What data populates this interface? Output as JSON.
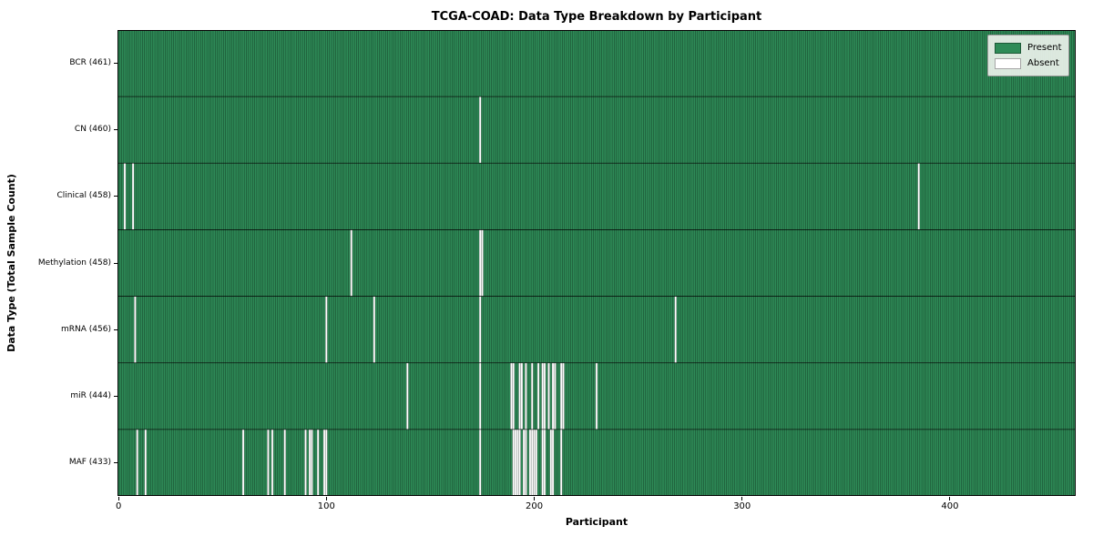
{
  "chart_data": {
    "type": "heatmap",
    "title": "TCGA-COAD: Data Type Breakdown by Participant",
    "xlabel": "Participant",
    "ylabel": "Data Type (Total Sample Count)",
    "n_participants": 461,
    "x_ticks": [
      0,
      100,
      200,
      300,
      400
    ],
    "grid": false,
    "legend_position": "upper right",
    "legend": [
      {
        "label": "Present",
        "color": "#2e8b57"
      },
      {
        "label": "Absent",
        "color": "#ffffff"
      }
    ],
    "colors": {
      "present": "#2e8b57",
      "absent": "#ffffff",
      "cell_edge": "rgba(0,0,0,0.5)",
      "row_separator": "rgba(0,0,0,0.85)",
      "axes_border": "#000000"
    },
    "rows": [
      {
        "name": "BCR",
        "label": "BCR (461)",
        "total": 461,
        "absent_participants": []
      },
      {
        "name": "CN",
        "label": "CN (460)",
        "total": 460,
        "absent_participants": [
          174
        ]
      },
      {
        "name": "Clinical",
        "label": "Clinical (458)",
        "total": 458,
        "absent_participants": [
          3,
          7,
          385
        ]
      },
      {
        "name": "Methylation",
        "label": "Methylation (458)",
        "total": 458,
        "absent_participants": [
          112,
          174,
          175
        ]
      },
      {
        "name": "mRNA",
        "label": "mRNA (456)",
        "total": 456,
        "absent_participants": [
          8,
          100,
          123,
          174,
          268
        ]
      },
      {
        "name": "miR",
        "label": "miR (444)",
        "total": 444,
        "absent_participants": [
          139,
          174,
          189,
          190,
          193,
          194,
          196,
          199,
          202,
          204,
          205,
          207,
          209,
          210,
          213,
          214,
          230
        ]
      },
      {
        "name": "MAF",
        "label": "MAF (433)",
        "total": 433,
        "absent_participants": [
          9,
          13,
          60,
          72,
          74,
          80,
          90,
          92,
          93,
          96,
          99,
          100,
          174,
          190,
          191,
          192,
          193,
          195,
          196,
          198,
          199,
          200,
          201,
          204,
          205,
          208,
          209,
          213
        ]
      }
    ]
  }
}
